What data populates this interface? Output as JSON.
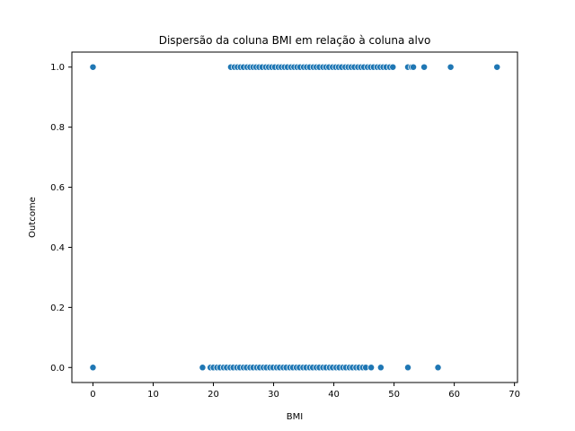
{
  "chart_data": {
    "type": "scatter",
    "title": "Dispersão da coluna BMI em relação à coluna alvo",
    "xlabel": "BMI",
    "ylabel": "Outcome",
    "xlim": [
      -3.5,
      70.5
    ],
    "ylim": [
      -0.05,
      1.05
    ],
    "xticks": [
      0,
      10,
      20,
      30,
      40,
      50,
      60,
      70
    ],
    "xtick_labels": [
      "0",
      "10",
      "20",
      "30",
      "40",
      "50",
      "60",
      "70"
    ],
    "yticks": [
      0.0,
      0.2,
      0.4,
      0.6,
      0.8,
      1.0
    ],
    "ytick_labels": [
      "0.0",
      "0.2",
      "0.4",
      "0.6",
      "0.8",
      "1.0"
    ],
    "grid": false,
    "marker_color": "#1f77b4",
    "marker_edge_color": "#ffffff",
    "series": [
      {
        "x": [
          0,
          22.9,
          23.5,
          24.0,
          24.5,
          25.0,
          25.6,
          26.1,
          26.6,
          27.1,
          27.6,
          28.1,
          28.7,
          29.2,
          29.7,
          30.2,
          30.8,
          31.3,
          31.8,
          32.3,
          32.9,
          33.4,
          33.9,
          34.4,
          35.0,
          35.5,
          36.0,
          36.6,
          37.1,
          37.6,
          38.2,
          38.7,
          39.2,
          39.8,
          40.3,
          40.8,
          41.3,
          41.9,
          42.4,
          42.9,
          43.4,
          44.0,
          44.5,
          45.0,
          45.6,
          46.1,
          46.6,
          47.2,
          47.7,
          48.2,
          48.7,
          49.3,
          49.8,
          52.3,
          52.9,
          53.2,
          55.0,
          59.4,
          67.1
        ],
        "y": [
          1,
          1,
          1,
          1,
          1,
          1,
          1,
          1,
          1,
          1,
          1,
          1,
          1,
          1,
          1,
          1,
          1,
          1,
          1,
          1,
          1,
          1,
          1,
          1,
          1,
          1,
          1,
          1,
          1,
          1,
          1,
          1,
          1,
          1,
          1,
          1,
          1,
          1,
          1,
          1,
          1,
          1,
          1,
          1,
          1,
          1,
          1,
          1,
          1,
          1,
          1,
          1,
          1,
          1,
          1,
          1,
          1,
          1,
          1
        ]
      },
      {
        "x": [
          0,
          18.2,
          19.5,
          20.0,
          20.6,
          21.1,
          21.7,
          22.2,
          22.8,
          23.3,
          23.9,
          24.4,
          25.0,
          25.5,
          26.1,
          26.6,
          27.2,
          27.7,
          28.3,
          28.8,
          29.4,
          29.9,
          30.5,
          31.0,
          31.6,
          32.1,
          32.7,
          33.2,
          33.8,
          34.3,
          34.9,
          35.4,
          36.0,
          36.5,
          37.1,
          37.6,
          38.2,
          38.7,
          39.3,
          39.8,
          40.4,
          40.9,
          41.5,
          42.0,
          42.6,
          43.1,
          43.7,
          44.2,
          44.8,
          45.3,
          46.2,
          47.8,
          52.3,
          57.3
        ],
        "y": [
          0,
          0,
          0,
          0,
          0,
          0,
          0,
          0,
          0,
          0,
          0,
          0,
          0,
          0,
          0,
          0,
          0,
          0,
          0,
          0,
          0,
          0,
          0,
          0,
          0,
          0,
          0,
          0,
          0,
          0,
          0,
          0,
          0,
          0,
          0,
          0,
          0,
          0,
          0,
          0,
          0,
          0,
          0,
          0,
          0,
          0,
          0,
          0,
          0,
          0,
          0,
          0,
          0,
          0
        ]
      }
    ]
  }
}
